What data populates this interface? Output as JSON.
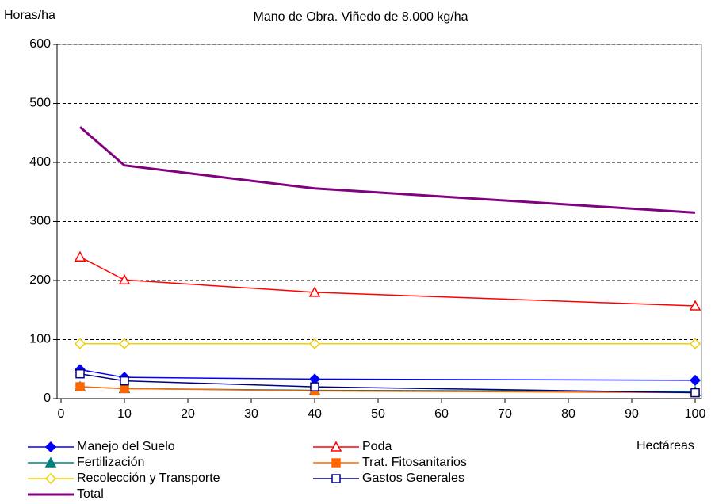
{
  "chart_data": {
    "type": "line",
    "title": "Mano de Obra. Viñedo de 8.000 kg/ha",
    "y_label": "Horas/ha",
    "x_label": "Hectáreas",
    "x": [
      3,
      10,
      40,
      100
    ],
    "xlim": [
      0,
      100
    ],
    "xticks": [
      0,
      10,
      20,
      30,
      40,
      50,
      60,
      70,
      80,
      90,
      100
    ],
    "ylim": [
      0,
      600
    ],
    "yticks": [
      0,
      100,
      200,
      300,
      400,
      500,
      600
    ],
    "grid": true,
    "legend": "bottom",
    "series": [
      {
        "name": "Manejo del Suelo",
        "color": "#0000ff",
        "marker": "diamond",
        "filled": true,
        "values": [
          49,
          36,
          33,
          31
        ]
      },
      {
        "name": "Poda",
        "color": "#ff0000",
        "marker": "triangle",
        "filled": false,
        "values": [
          240,
          201,
          180,
          157
        ]
      },
      {
        "name": "Fertilización",
        "color": "#008080",
        "marker": "triangle",
        "filled": true,
        "values": [
          20,
          17,
          14,
          12
        ]
      },
      {
        "name": "Trat. Fitosanitarios",
        "color": "#ff6600",
        "marker": "square",
        "filled": true,
        "values": [
          20,
          17,
          13,
          10
        ]
      },
      {
        "name": "Recolección y Transporte",
        "color": "#f0d000",
        "marker": "diamond",
        "filled": false,
        "values": [
          93,
          93,
          93,
          93
        ]
      },
      {
        "name": "Gastos Generales",
        "color": "#000080",
        "marker": "square",
        "filled": false,
        "values": [
          42,
          30,
          20,
          10
        ]
      },
      {
        "name": "Total",
        "color": "#800080",
        "marker": "none",
        "filled": false,
        "width": 3,
        "values": [
          460,
          395,
          356,
          315
        ]
      }
    ]
  }
}
